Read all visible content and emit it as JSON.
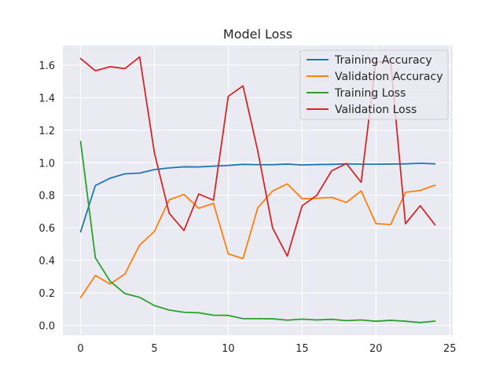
{
  "chart_data": {
    "type": "line",
    "title": "Model Loss",
    "xlabel": "",
    "ylabel": "",
    "xlim": [
      -1.2,
      25.2
    ],
    "ylim": [
      -0.06,
      1.72
    ],
    "xticks": [
      0,
      5,
      10,
      15,
      20,
      25
    ],
    "yticks": [
      0.0,
      0.2,
      0.4,
      0.6,
      0.8,
      1.0,
      1.2,
      1.4,
      1.6
    ],
    "grid": true,
    "legend_position": "top-right",
    "x": [
      0,
      1,
      2,
      3,
      4,
      5,
      6,
      7,
      8,
      9,
      10,
      11,
      12,
      13,
      14,
      15,
      16,
      17,
      18,
      19,
      20,
      21,
      22,
      23,
      24
    ],
    "series": [
      {
        "name": "Training Accuracy",
        "color": "#1f77b4",
        "values": [
          0.575,
          0.86,
          0.905,
          0.932,
          0.936,
          0.958,
          0.968,
          0.975,
          0.974,
          0.979,
          0.983,
          0.99,
          0.988,
          0.988,
          0.992,
          0.986,
          0.989,
          0.99,
          0.993,
          0.991,
          0.991,
          0.992,
          0.993,
          0.997,
          0.993
        ]
      },
      {
        "name": "Validation Accuracy",
        "color": "#ff7f0e",
        "values": [
          0.171,
          0.307,
          0.255,
          0.316,
          0.494,
          0.578,
          0.772,
          0.805,
          0.72,
          0.75,
          0.44,
          0.411,
          0.723,
          0.826,
          0.87,
          0.779,
          0.781,
          0.787,
          0.756,
          0.827,
          0.626,
          0.62,
          0.818,
          0.83,
          0.862
        ]
      },
      {
        "name": "Training Loss",
        "color": "#2ca02c",
        "values": [
          1.131,
          0.416,
          0.272,
          0.196,
          0.173,
          0.122,
          0.095,
          0.081,
          0.078,
          0.063,
          0.062,
          0.042,
          0.042,
          0.041,
          0.033,
          0.039,
          0.034,
          0.038,
          0.03,
          0.034,
          0.026,
          0.032,
          0.026,
          0.018,
          0.027
        ]
      },
      {
        "name": "Validation Loss",
        "color": "#d62728",
        "values": [
          1.64,
          1.565,
          1.59,
          1.578,
          1.65,
          1.06,
          0.69,
          0.583,
          0.808,
          0.77,
          1.408,
          1.472,
          1.072,
          0.6,
          0.426,
          0.735,
          0.8,
          0.95,
          0.995,
          0.88,
          1.62,
          1.62,
          0.625,
          0.736,
          0.618
        ]
      }
    ]
  }
}
